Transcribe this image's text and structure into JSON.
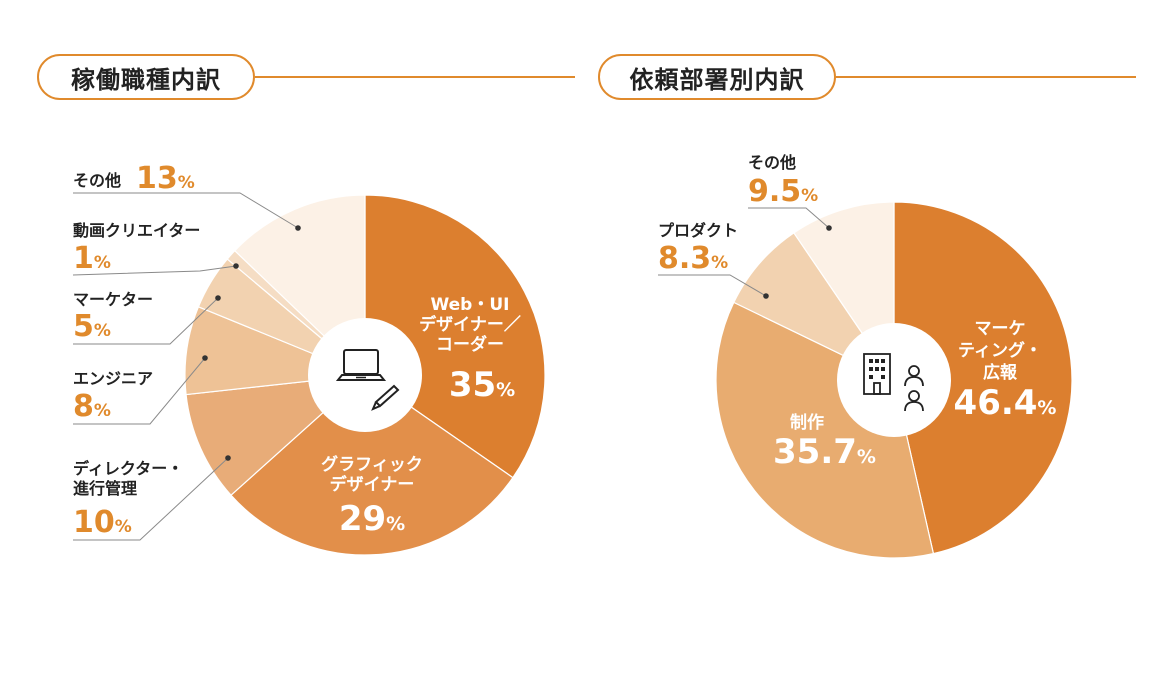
{
  "chart_data": [
    {
      "type": "pie",
      "title": "稼働職種内訳",
      "slices": [
        {
          "label": "Web・UIデザイナー／コーダー",
          "value": 35,
          "color": "#dc7f2f"
        },
        {
          "label": "グラフィックデザイナー",
          "value": 29,
          "color": "#e28f4a"
        },
        {
          "label": "ディレクター・進行管理",
          "value": 10,
          "color": "#e8ac78"
        },
        {
          "label": "エンジニア",
          "value": 8,
          "color": "#eec296"
        },
        {
          "label": "マーケター",
          "value": 5,
          "color": "#f2d2b0"
        },
        {
          "label": "動画クリエイター",
          "value": 1,
          "color": "#f5ddc4"
        },
        {
          "label": "その他",
          "value": 13,
          "color": "#fcf1e6"
        }
      ],
      "inside_labels": [
        {
          "lines": [
            "Web・UI",
            "デザイナー／",
            "コーダー"
          ],
          "num": "35",
          "unit": "%"
        },
        {
          "lines": [
            "グラフィック",
            "デザイナー"
          ],
          "num": "29",
          "unit": "%"
        }
      ],
      "outside_labels": [
        {
          "lines": [
            "その他"
          ],
          "num": "13",
          "unit": "%"
        },
        {
          "lines": [
            "動画クリエイター"
          ],
          "num": "1",
          "unit": "%"
        },
        {
          "lines": [
            "マーケター"
          ],
          "num": "5",
          "unit": "%"
        },
        {
          "lines": [
            "エンジニア"
          ],
          "num": "8",
          "unit": "%"
        },
        {
          "lines": [
            "ディレクター・",
            "進行管理"
          ],
          "num": "10",
          "unit": "%"
        }
      ]
    },
    {
      "type": "pie",
      "title": "依頼部署別内訳",
      "slices": [
        {
          "label": "マーケティング・広報",
          "value": 46.4,
          "color": "#dc7f2f"
        },
        {
          "label": "制作",
          "value": 35.7,
          "color": "#e8ac70"
        },
        {
          "label": "プロダクト",
          "value": 8.3,
          "color": "#f2d2b0"
        },
        {
          "label": "その他",
          "value": 9.5,
          "color": "#fcf1e6"
        }
      ],
      "inside_labels": [
        {
          "lines": [
            "マーケ",
            "ティング・",
            "広報"
          ],
          "num": "46.4",
          "unit": "%"
        },
        {
          "lines": [
            "制作"
          ],
          "num": "35.7",
          "unit": "%"
        }
      ],
      "outside_labels": [
        {
          "lines": [
            "その他"
          ],
          "num": "9.5",
          "unit": "%"
        },
        {
          "lines": [
            "プロダクト"
          ],
          "num": "8.3",
          "unit": "%"
        }
      ]
    }
  ],
  "colors": {
    "accent": "#e08a2c",
    "number": "#e08a2c",
    "line": "#8a8a8a"
  },
  "icons": [
    "laptop-pencil-icon",
    "building-people-icon"
  ]
}
